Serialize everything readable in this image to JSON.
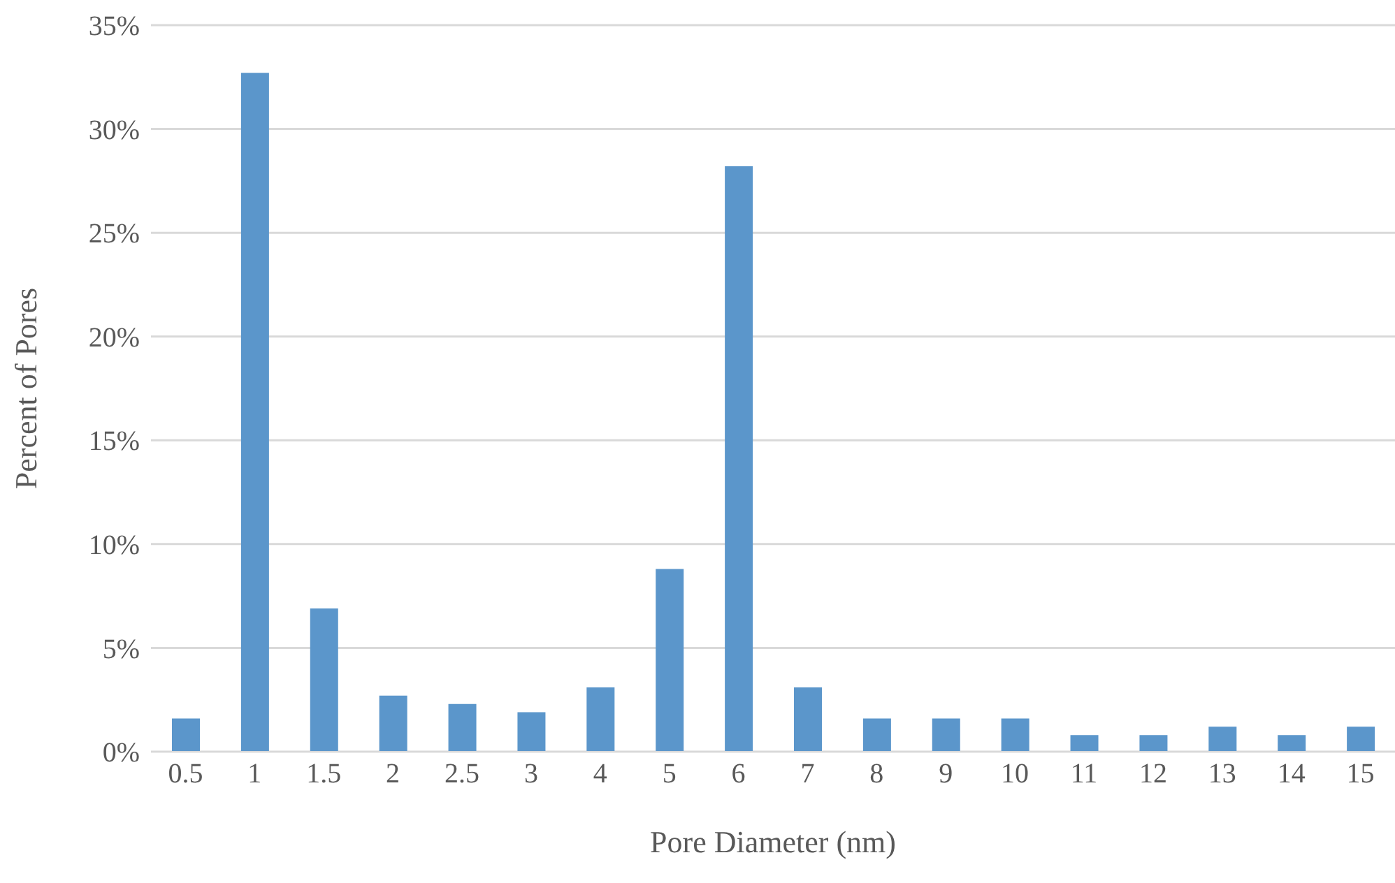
{
  "chart_data": {
    "type": "bar",
    "xlabel": "Pore Diameter (nm)",
    "ylabel": "Percent of Pores",
    "categories": [
      "0.5",
      "1",
      "1.5",
      "2",
      "2.5",
      "3",
      "4",
      "5",
      "6",
      "7",
      "8",
      "9",
      "10",
      "11",
      "12",
      "13",
      "14",
      "15"
    ],
    "values": [
      1.6,
      32.7,
      6.9,
      2.7,
      2.3,
      1.9,
      3.1,
      8.8,
      28.2,
      3.1,
      1.6,
      1.6,
      1.6,
      0.8,
      0.8,
      1.2,
      0.8,
      1.2
    ],
    "color": "#5b96cb",
    "ylim": [
      0,
      35
    ],
    "yticks": [
      {
        "value": 0,
        "label": "0%"
      },
      {
        "value": 5,
        "label": "5%"
      },
      {
        "value": 10,
        "label": "10%"
      },
      {
        "value": 15,
        "label": "15%"
      },
      {
        "value": 20,
        "label": "20%"
      },
      {
        "value": 25,
        "label": "25%"
      },
      {
        "value": 30,
        "label": "30%"
      },
      {
        "value": 35,
        "label": "35%"
      }
    ],
    "grid": "y"
  }
}
